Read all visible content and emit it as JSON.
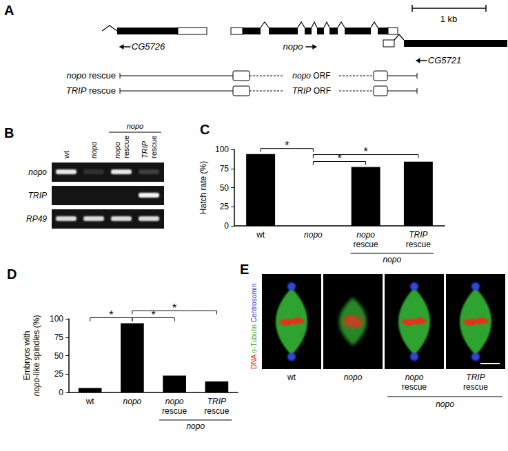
{
  "italic_terms": [
    "nopo",
    "TRIP",
    "CG5726",
    "CG5721",
    "RP49"
  ],
  "panel_A": {
    "letter": "A",
    "scale_bar": "1 kb",
    "genes": [
      {
        "label": "CG5726",
        "direction": "left"
      },
      {
        "label": "nopo",
        "direction": "right"
      },
      {
        "label": "CG5721",
        "direction": "left"
      }
    ],
    "constructs": [
      {
        "label": "nopo rescue",
        "orf": "nopo ORF"
      },
      {
        "label": "TRIP rescue",
        "orf": "TRIP ORF"
      }
    ]
  },
  "panel_B": {
    "letter": "B",
    "lanes": [
      "wt",
      "nopo",
      "nopo rescue",
      "TRIP rescue"
    ],
    "lane_group": {
      "label": "nopo",
      "lanes": [
        "nopo rescue",
        "TRIP rescue"
      ]
    },
    "rows": [
      {
        "label": "nopo",
        "bands": [
          0.9,
          0.12,
          0.9,
          0.18
        ]
      },
      {
        "label": "TRIP",
        "bands": [
          0,
          0,
          0,
          0.95
        ]
      },
      {
        "label": "RP49",
        "bands": [
          0.85,
          0.85,
          0.85,
          0.85
        ]
      }
    ]
  },
  "chart_data": [
    {
      "panel": "C",
      "type": "bar",
      "categories": [
        "wt",
        "nopo",
        "nopo rescue",
        "TRIP rescue"
      ],
      "values": [
        94,
        0,
        77,
        84
      ],
      "color": "#000000",
      "ylim": [
        0,
        100
      ],
      "yticks": [
        0,
        25,
        50,
        75,
        100
      ],
      "grid": false,
      "y_label": "Hatch rate (%)",
      "annotations": [
        {
          "text": "*",
          "from": "wt",
          "to": "nopo"
        },
        {
          "text": "*",
          "from": "nopo",
          "to": "nopo rescue"
        },
        {
          "text": "*",
          "from": "nopo",
          "to": "TRIP rescue"
        },
        {
          "text": "nopo",
          "under": [
            "nopo rescue",
            "TRIP rescue"
          ]
        }
      ]
    },
    {
      "panel": "D",
      "type": "bar",
      "categories": [
        "wt",
        "nopo",
        "nopo rescue",
        "TRIP rescue"
      ],
      "values": [
        6,
        94,
        23,
        15
      ],
      "color": "#000000",
      "ylim": [
        0,
        100
      ],
      "yticks": [
        0,
        25,
        50,
        75,
        100
      ],
      "grid": false,
      "y_label": "Embryos with\nnopo-like spindles (%)",
      "annotations": [
        {
          "text": "*",
          "from": "wt",
          "to": "nopo"
        },
        {
          "text": "*",
          "from": "nopo",
          "to": "nopo rescue"
        },
        {
          "text": "*",
          "from": "nopo",
          "to": "TRIP rescue"
        },
        {
          "text": "nopo",
          "under": [
            "nopo rescue",
            "TRIP rescue"
          ]
        }
      ]
    }
  ],
  "panel_E": {
    "letter": "E",
    "stains": [
      {
        "label": "DNA",
        "color": "#e8301c"
      },
      {
        "label": "α-Tubulin",
        "color": "#35b535"
      },
      {
        "label": "Centrosomin",
        "color": "#3344dd"
      }
    ],
    "images": [
      {
        "label": "wt",
        "centrosomes": true
      },
      {
        "label": "nopo",
        "centrosomes": false
      },
      {
        "label": "nopo rescue",
        "centrosomes": true
      },
      {
        "label": "TRIP rescue",
        "centrosomes": true
      }
    ],
    "image_group": {
      "label": "nopo",
      "images": [
        "nopo rescue",
        "TRIP rescue"
      ]
    }
  }
}
